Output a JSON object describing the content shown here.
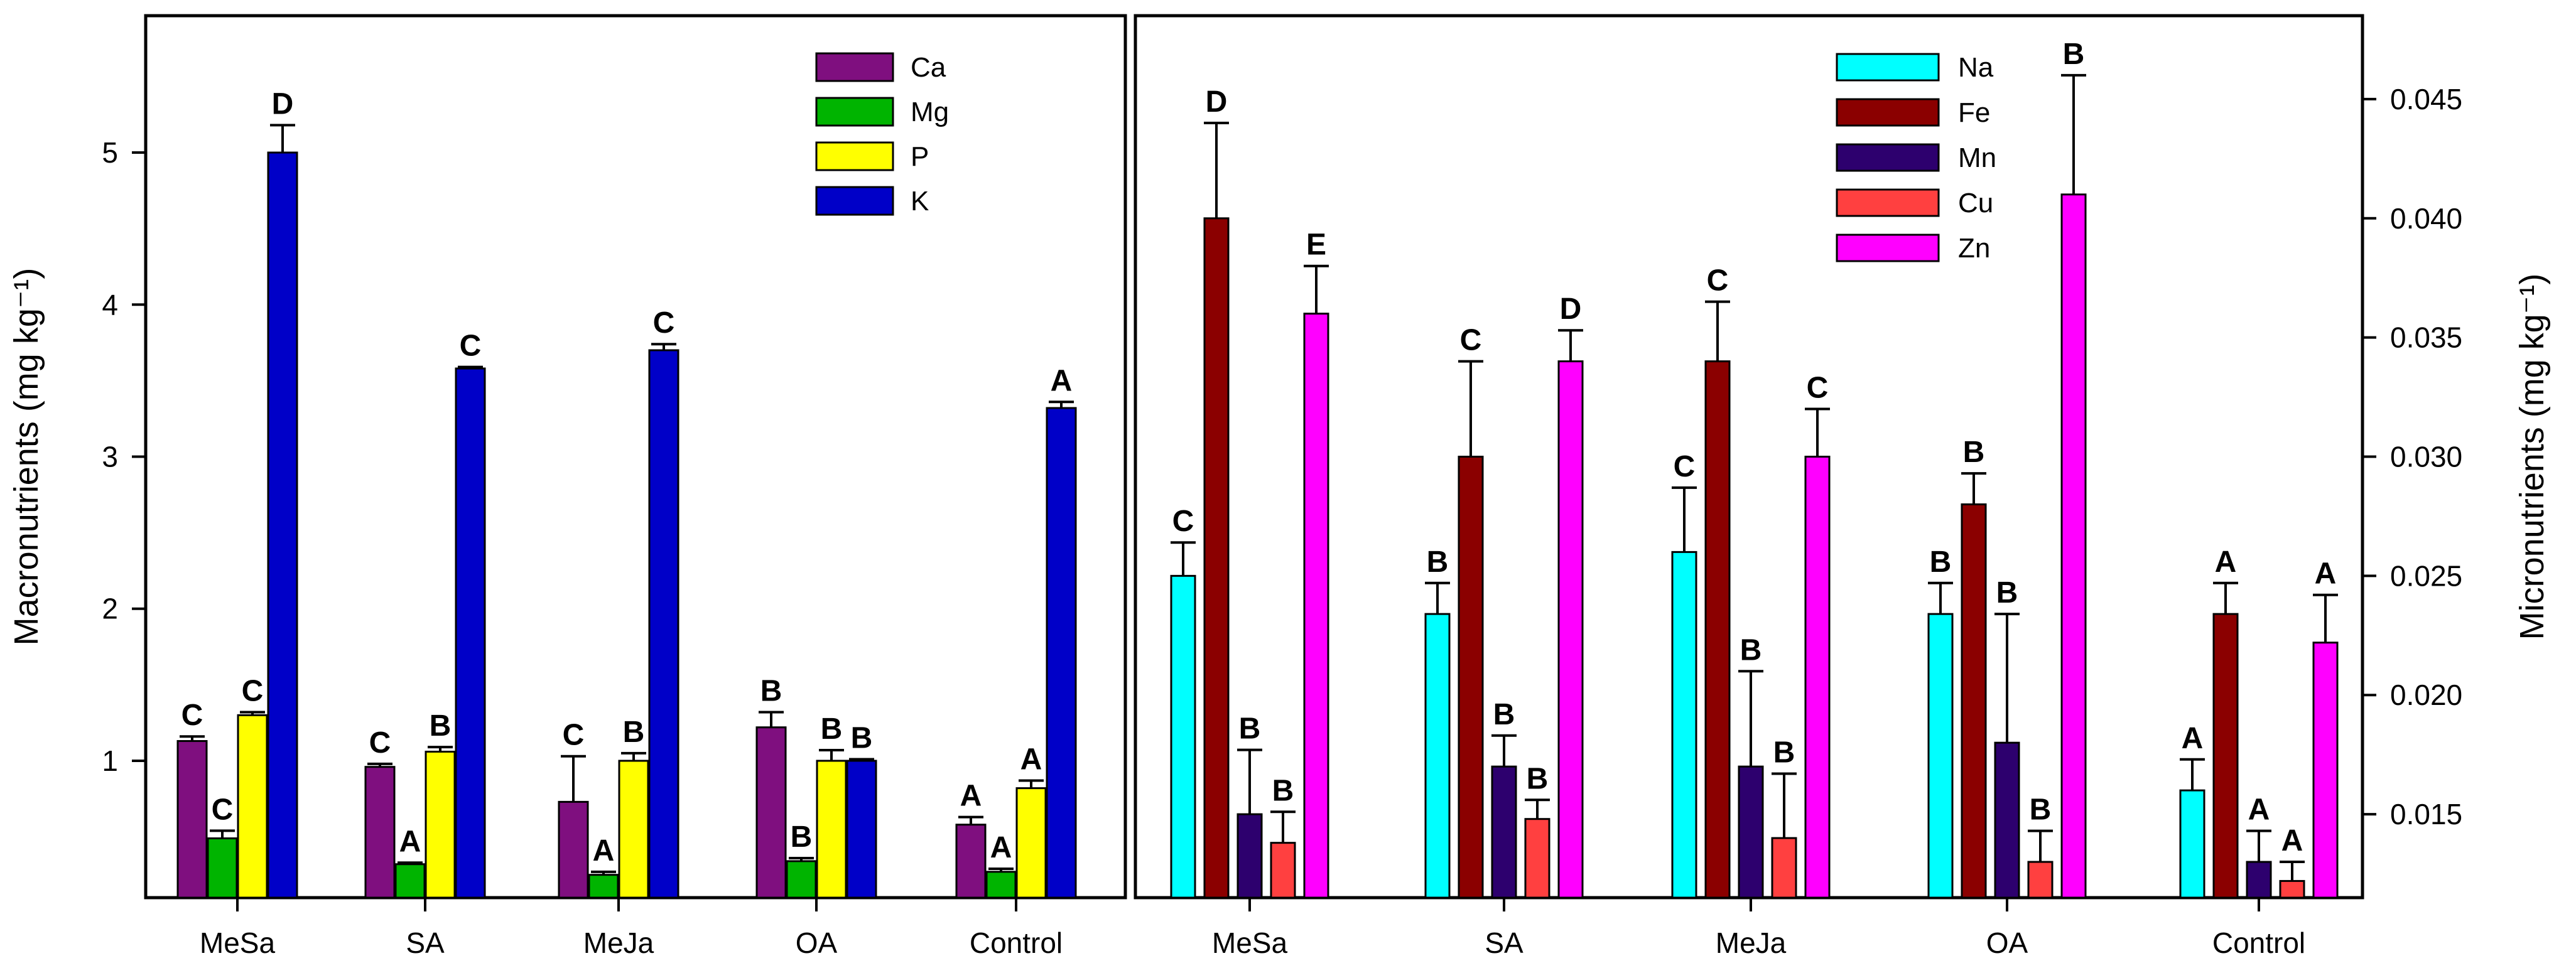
{
  "chart_data": [
    {
      "type": "bar",
      "categories": [
        "MeSa",
        "SA",
        "MeJa",
        "OA",
        "Control"
      ],
      "ylabel": "Macronutrients (mg kg⁻¹)",
      "ylim": [
        0.1,
        5.9
      ],
      "yticks": [
        1,
        2,
        3,
        4,
        5
      ],
      "legend_position": "top-right",
      "series": [
        {
          "name": "Ca",
          "color": "#7f0f7f",
          "values": [
            1.13,
            0.96,
            0.73,
            1.22,
            0.58
          ],
          "errors": [
            0.03,
            0.02,
            0.3,
            0.1,
            0.05
          ],
          "letters": [
            "C",
            "C",
            "C",
            "B",
            "A"
          ]
        },
        {
          "name": "Mg",
          "color": "#00b400",
          "values": [
            0.49,
            0.32,
            0.25,
            0.34,
            0.27
          ],
          "errors": [
            0.05,
            0.01,
            0.02,
            0.02,
            0.02
          ],
          "letters": [
            "C",
            "A",
            "A",
            "B",
            "A"
          ]
        },
        {
          "name": "P",
          "color": "#ffff00",
          "values": [
            1.3,
            1.06,
            1.0,
            1.0,
            0.82
          ],
          "errors": [
            0.02,
            0.03,
            0.05,
            0.07,
            0.05
          ],
          "letters": [
            "C",
            "B",
            "B",
            "B",
            "A"
          ]
        },
        {
          "name": "K",
          "color": "#0000c8",
          "values": [
            5.0,
            3.58,
            3.7,
            1.0,
            3.32
          ],
          "errors": [
            0.18,
            0.01,
            0.04,
            0.01,
            0.04
          ],
          "letters": [
            "D",
            "C",
            "C",
            "B",
            "A"
          ]
        }
      ]
    },
    {
      "type": "bar",
      "categories": [
        "MeSa",
        "SA",
        "MeJa",
        "OA",
        "Control"
      ],
      "ylabel": "Micronutrients (mg kg⁻¹)",
      "ylim": [
        0.0115,
        0.0485
      ],
      "yticks": [
        "0.015",
        "0.020",
        "0.025",
        "0.030",
        "0.035",
        "0.040",
        "0.045"
      ],
      "legend_position": "top-left",
      "series": [
        {
          "name": "Na",
          "color": "#00ffff",
          "values": [
            0.025,
            0.0234,
            0.026,
            0.0234,
            0.016
          ],
          "errors": [
            0.0014,
            0.0013,
            0.0027,
            0.0013,
            0.0013
          ],
          "letters": [
            "C",
            "B",
            "C",
            "B",
            "A"
          ]
        },
        {
          "name": "Fe",
          "color": "#8b0000",
          "values": [
            0.04,
            0.03,
            0.034,
            0.028,
            0.0234
          ],
          "errors": [
            0.004,
            0.004,
            0.0025,
            0.0013,
            0.0013
          ],
          "letters": [
            "D",
            "C",
            "C",
            "B",
            "A"
          ]
        },
        {
          "name": "Mn",
          "color": "#2d006e",
          "values": [
            0.015,
            0.017,
            0.017,
            0.018,
            0.013
          ],
          "errors": [
            0.0027,
            0.0013,
            0.004,
            0.0054,
            0.0013
          ],
          "letters": [
            "B",
            "B",
            "B",
            "B",
            "A"
          ]
        },
        {
          "name": "Cu",
          "color": "#ff4040",
          "values": [
            0.0138,
            0.0148,
            0.014,
            0.013,
            0.0122
          ],
          "errors": [
            0.0013,
            0.0008,
            0.0027,
            0.0013,
            0.0008
          ],
          "letters": [
            "B",
            "B",
            "B",
            "B",
            "A"
          ]
        },
        {
          "name": "Zn",
          "color": "#ff00ff",
          "values": [
            0.036,
            0.034,
            0.03,
            0.041,
            0.0222
          ],
          "errors": [
            0.002,
            0.0013,
            0.002,
            0.005,
            0.002
          ],
          "letters": [
            "E",
            "D",
            "C",
            "B",
            "A"
          ]
        }
      ]
    }
  ]
}
